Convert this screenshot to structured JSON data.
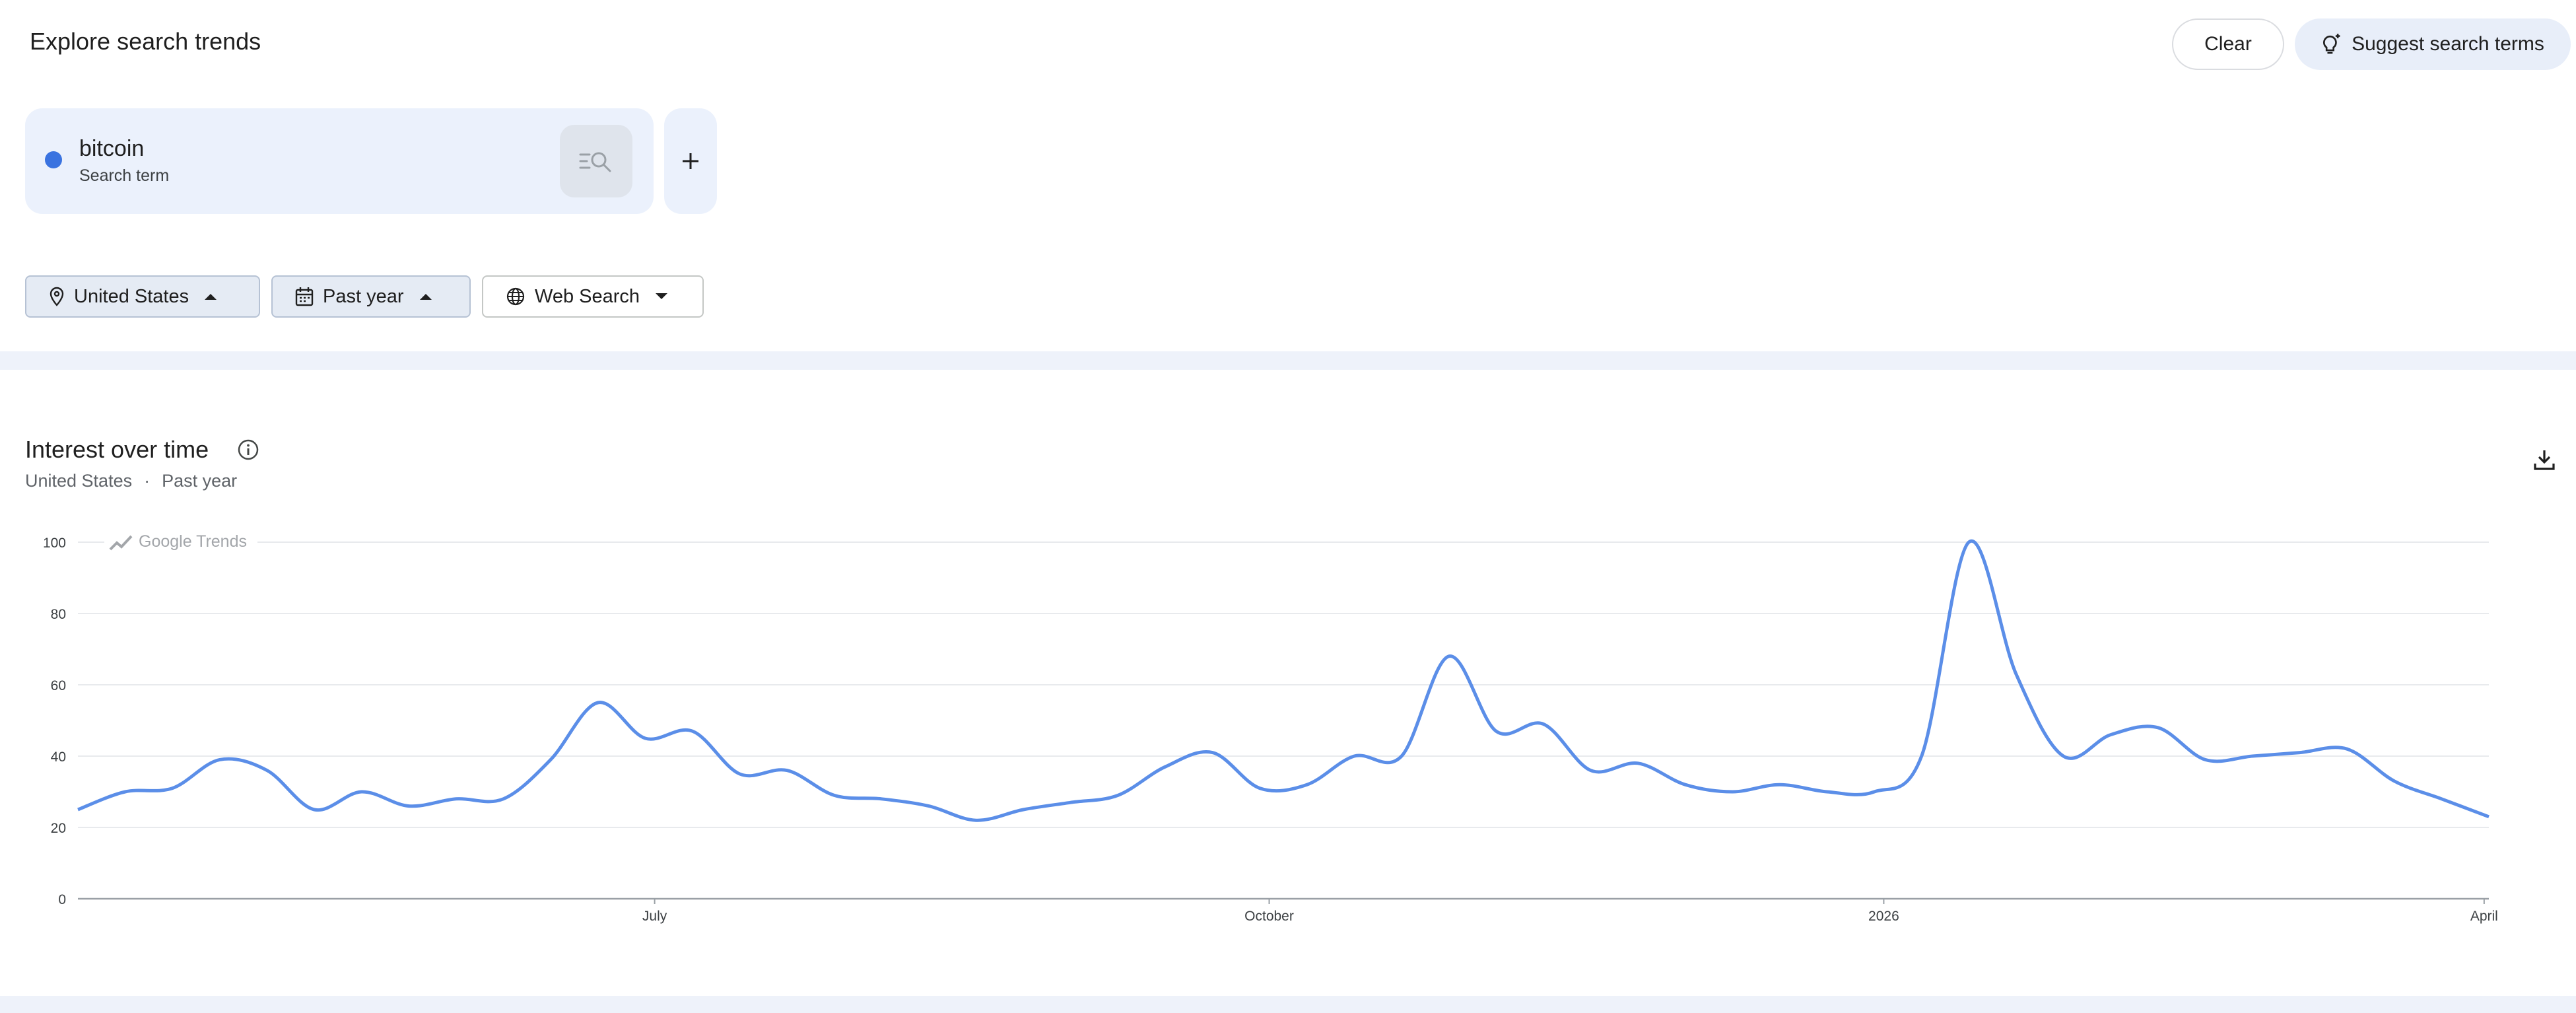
{
  "header": {
    "title": "Explore search trends",
    "clear_label": "Clear",
    "suggest_label": "Suggest search terms"
  },
  "term": {
    "name": "bitcoin",
    "type": "Search term",
    "color": "#3a73e0"
  },
  "filters": {
    "location": "United States",
    "period": "Past year",
    "property": "Web Search"
  },
  "card": {
    "title": "Interest over time",
    "sub_location": "United States",
    "sub_separator": "·",
    "sub_period": "Past year",
    "watermark": "Google Trends"
  },
  "icons": {
    "location": "location-pin-icon",
    "calendar": "calendar-icon",
    "globe": "globe-icon",
    "info": "info-icon",
    "download": "download-icon",
    "suggest": "lightbulb-sparkle-icon",
    "search_list": "search-list-icon",
    "add": "plus-icon"
  },
  "chart_data": {
    "type": "line",
    "title": "",
    "xlabel": "",
    "ylabel": "",
    "ylim": [
      0,
      100
    ],
    "yticks": [
      0,
      20,
      40,
      60,
      80,
      100
    ],
    "xticks": [
      {
        "label": "July",
        "week": 12.2
      },
      {
        "label": "October",
        "week": 25.2
      },
      {
        "label": "2026",
        "week": 38.2
      },
      {
        "label": "April",
        "week": 50.9
      }
    ],
    "grid": true,
    "color": "#5b8ee8",
    "series": [
      {
        "name": "bitcoin",
        "values": [
          25,
          30,
          31,
          39,
          36,
          25,
          30,
          26,
          28,
          28,
          39,
          55,
          45,
          47,
          35,
          36,
          29,
          28,
          26,
          22,
          25,
          27,
          29,
          37,
          41,
          31,
          32,
          40,
          40,
          68,
          47,
          49,
          36,
          38,
          32,
          30,
          32,
          30,
          30,
          40,
          100,
          63,
          40,
          46,
          48,
          39,
          40,
          41,
          42,
          33,
          28,
          23
        ]
      }
    ]
  }
}
